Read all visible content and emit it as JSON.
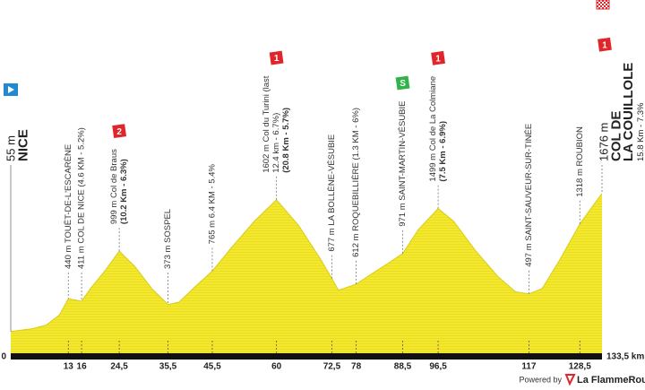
{
  "chart_data": {
    "type": "profile",
    "color": "#f4e82c",
    "x": [
      0,
      5,
      8,
      11,
      13,
      16,
      18,
      21,
      24.5,
      28,
      32,
      35.5,
      38,
      42,
      45.5,
      50,
      55,
      60,
      65,
      70,
      72.5,
      74,
      78,
      82,
      85,
      88.5,
      92,
      96.5,
      100,
      105,
      110,
      114,
      117,
      120,
      124,
      128.5,
      131,
      133.5
    ],
    "values": [
      55,
      90,
      130,
      250,
      440,
      411,
      560,
      750,
      999,
      820,
      550,
      373,
      400,
      600,
      765,
      1050,
      1350,
      1602,
      1300,
      900,
      677,
      540,
      612,
      750,
      850,
      971,
      1250,
      1499,
      1350,
      1000,
      700,
      520,
      497,
      560,
      900,
      1318,
      1500,
      1676
    ],
    "xlim": [
      0,
      133.5
    ],
    "xticks": [
      0,
      13,
      16,
      {
        "value": 24.5,
        "label": "24,5"
      },
      {
        "value": 35.5,
        "label": "35,5"
      },
      {
        "value": 45.5,
        "label": "45,5"
      },
      60,
      {
        "value": 72.5,
        "label": "72,5"
      },
      78,
      {
        "value": 88.5,
        "label": "88,5"
      },
      {
        "value": 96.5,
        "label": "96,5"
      },
      117,
      {
        "value": 128.5,
        "label": "128,5"
      },
      {
        "value": 133.5,
        "label": "133,5 km"
      }
    ],
    "ylim": [
      -200,
      1800
    ],
    "waypoints": [
      {
        "km": 0,
        "named": true,
        "lines": [
          {
            "text": "55 m"
          },
          {
            "text": "NICE",
            "bold": true
          }
        ]
      },
      {
        "km": 13,
        "lines": [
          {
            "text": "440 m TOUËT-DE-L'ESCARÈNE"
          }
        ]
      },
      {
        "km": 16,
        "lines": [
          {
            "text": "411 m COL DE NICE (4.6 KM - 5.2%)"
          }
        ]
      },
      {
        "km": 24.5,
        "badge": {
          "text": "2",
          "color": "#e0262b"
        },
        "lines": [
          {
            "text": "999 m Col de Braus"
          },
          {
            "text": "(10.2 Km - 6.3%)",
            "bold": true
          }
        ]
      },
      {
        "km": 35.5,
        "lines": [
          {
            "text": "373 m SOSPEL"
          }
        ]
      },
      {
        "km": 45.5,
        "lines": [
          {
            "text": "765 m 6.4 KM - 5.4%"
          }
        ]
      },
      {
        "km": 60,
        "badge": {
          "text": "1",
          "color": "#e0262b"
        },
        "lines": [
          {
            "text": "1602 m Col du Turini (last"
          },
          {
            "text": "12.4 km - 6.7%)"
          },
          {
            "text": "(20.8 Km - 5.7%)",
            "bold": true
          }
        ]
      },
      {
        "km": 72.5,
        "lines": [
          {
            "text": "677 m LA BOLLÈNE-VÉSUBIE"
          }
        ]
      },
      {
        "km": 78,
        "lines": [
          {
            "text": "612 m ROQUEBILLIÈRE (1.3 KM - 6%)"
          }
        ]
      },
      {
        "km": 88.5,
        "badge": {
          "text": "S",
          "color": "#2fb34a"
        },
        "lines": [
          {
            "text": "971 m SAINT-MARTIN-VÉSUBIE"
          }
        ]
      },
      {
        "km": 96.5,
        "badge": {
          "text": "1",
          "color": "#e0262b"
        },
        "lines": [
          {
            "text": "1499 m Col de La Colmiane"
          },
          {
            "text": "(7.5 Km - 6.9%)",
            "bold": true
          }
        ]
      },
      {
        "km": 117,
        "lines": [
          {
            "text": "497 m SAINT-SAUVEUR-SUR-TINÉE"
          }
        ]
      },
      {
        "km": 128.5,
        "lines": [
          {
            "text": "1318 m ROUBION"
          }
        ]
      },
      {
        "km": 133.5,
        "named": true,
        "badge": {
          "text": "1",
          "color": "#e0262b"
        },
        "lines": [
          {
            "text": "1676 m"
          },
          {
            "text": "COL DE",
            "bold": true
          },
          {
            "text": "LA COUILLOLE",
            "bold": true
          },
          {
            "text": "15.8 Km - 7.3%"
          }
        ]
      }
    ]
  },
  "footer": {
    "powered": "Powered by",
    "brand": "La FlammeRouge"
  }
}
